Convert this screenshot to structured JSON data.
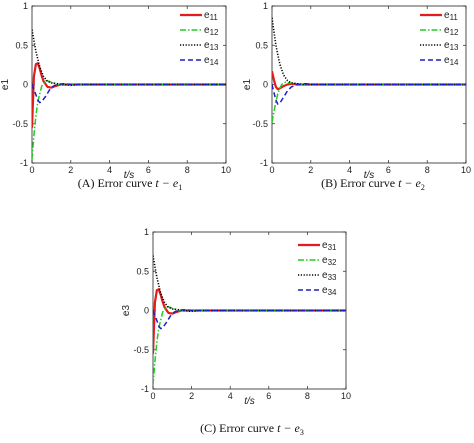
{
  "chart_data": [
    {
      "type": "line",
      "caption": "(A) Error curve",
      "caption_math": {
        "symbol": "t − e",
        "sub": "1"
      },
      "xlabel": "t/s",
      "ylabel": "e1",
      "xlim": [
        0,
        10
      ],
      "ylim": [
        -1,
        1
      ],
      "xticks": [
        "0",
        "2",
        "4",
        "6",
        "8",
        "10"
      ],
      "yticks": [
        "-1",
        "-0.5",
        "0",
        "0.5",
        "1"
      ],
      "legend_position": "top-right",
      "grid": false,
      "series": [
        {
          "name": "e11",
          "base": "e",
          "sub": "11",
          "color": "#e41a1c",
          "dash": "",
          "width": 2.2,
          "x": [
            0,
            0.1,
            0.2,
            0.3,
            0.4,
            0.5,
            0.6,
            0.8,
            1.0,
            1.2,
            1.5,
            2.0,
            3.0,
            10
          ],
          "y": [
            -0.55,
            0.1,
            0.26,
            0.27,
            0.2,
            0.11,
            0.04,
            -0.03,
            -0.04,
            -0.02,
            0.0,
            0.0,
            0.0,
            0.0
          ]
        },
        {
          "name": "e12",
          "base": "e",
          "sub": "12",
          "color": "#22cc22",
          "dash": "6,2,1.5,2",
          "width": 1.5,
          "x": [
            0,
            0.1,
            0.2,
            0.3,
            0.5,
            0.7,
            0.9,
            1.1,
            1.4,
            1.8,
            2.5,
            10
          ],
          "y": [
            -0.95,
            -0.65,
            -0.4,
            -0.22,
            -0.02,
            0.05,
            0.04,
            0.02,
            0.0,
            0.0,
            0.0,
            0.0
          ]
        },
        {
          "name": "e13",
          "base": "e",
          "sub": "13",
          "color": "#000000",
          "dash": "1.2,1.6",
          "width": 1.6,
          "x": [
            0,
            0.2,
            0.4,
            0.6,
            0.8,
            1.0,
            1.3,
            1.6,
            2.0,
            2.5,
            3.0,
            10
          ],
          "y": [
            0.7,
            0.42,
            0.22,
            0.1,
            0.04,
            0.02,
            0.01,
            0.0,
            -0.01,
            0.0,
            0.0,
            0.0
          ]
        },
        {
          "name": "e14",
          "base": "e",
          "sub": "14",
          "color": "#1f1fbf",
          "dash": "5,3",
          "width": 1.5,
          "x": [
            0,
            0.2,
            0.3,
            0.4,
            0.5,
            0.7,
            0.9,
            1.1,
            1.3,
            1.6,
            2.0,
            3.0,
            10
          ],
          "y": [
            0.0,
            -0.13,
            -0.2,
            -0.23,
            -0.22,
            -0.15,
            -0.07,
            -0.02,
            0.0,
            0.01,
            0.0,
            0.0,
            0.0
          ]
        }
      ]
    },
    {
      "type": "line",
      "caption": "(B) Error curve",
      "caption_math": {
        "symbol": "t − e",
        "sub": "2"
      },
      "xlabel": "t/s",
      "ylabel": "e1",
      "xlim": [
        0,
        10
      ],
      "ylim": [
        -1,
        1
      ],
      "xticks": [
        "0",
        "2",
        "4",
        "6",
        "8",
        "10"
      ],
      "yticks": [
        "-1",
        "-0.5",
        "0",
        "0.5",
        "1"
      ],
      "legend_position": "top-right",
      "grid": false,
      "series": [
        {
          "name": "e11",
          "base": "e",
          "sub": "11",
          "color": "#e41a1c",
          "dash": "",
          "width": 2.2,
          "x": [
            0,
            0.1,
            0.2,
            0.3,
            0.4,
            0.6,
            0.8,
            1.0,
            1.3,
            2.0,
            10
          ],
          "y": [
            0.17,
            0.06,
            -0.03,
            -0.06,
            -0.05,
            -0.02,
            0.0,
            0.01,
            0.0,
            0.0,
            0.0
          ]
        },
        {
          "name": "e12",
          "base": "e",
          "sub": "12",
          "color": "#22cc22",
          "dash": "6,2,1.5,2",
          "width": 1.5,
          "x": [
            0,
            0.1,
            0.2,
            0.3,
            0.4,
            0.5,
            0.7,
            0.9,
            1.2,
            1.6,
            2.2,
            10
          ],
          "y": [
            -0.48,
            -0.35,
            -0.22,
            -0.12,
            -0.05,
            0.0,
            0.03,
            0.02,
            0.01,
            0.0,
            0.0,
            0.0
          ]
        },
        {
          "name": "e13",
          "base": "e",
          "sub": "13",
          "color": "#000000",
          "dash": "1.2,1.6",
          "width": 1.6,
          "x": [
            0,
            0.2,
            0.4,
            0.6,
            0.8,
            1.0,
            1.3,
            1.6,
            2.0,
            2.5,
            3.0,
            10
          ],
          "y": [
            0.85,
            0.5,
            0.26,
            0.12,
            0.05,
            0.02,
            0.01,
            0.0,
            0.0,
            0.0,
            0.0,
            0.0
          ]
        },
        {
          "name": "e14",
          "base": "e",
          "sub": "14",
          "color": "#1f1fbf",
          "dash": "5,3",
          "width": 1.5,
          "x": [
            0,
            0.1,
            0.2,
            0.3,
            0.4,
            0.6,
            0.8,
            1.0,
            1.3,
            1.7,
            2.2,
            10
          ],
          "y": [
            0.0,
            -0.1,
            -0.2,
            -0.25,
            -0.24,
            -0.16,
            -0.08,
            -0.03,
            0.0,
            0.01,
            0.0,
            0.0
          ]
        }
      ]
    },
    {
      "type": "line",
      "caption": "(C) Error curve",
      "caption_math": {
        "symbol": "t − e",
        "sub": "3"
      },
      "xlabel": "t/s",
      "ylabel": "e3",
      "xlim": [
        0,
        10
      ],
      "ylim": [
        -1,
        1
      ],
      "xticks": [
        "0",
        "2",
        "4",
        "6",
        "8",
        "10"
      ],
      "yticks": [
        "-1",
        "-0.5",
        "0",
        "0.5",
        "1"
      ],
      "legend_position": "top-right",
      "grid": false,
      "series": [
        {
          "name": "e31",
          "base": "e",
          "sub": "31",
          "color": "#e41a1c",
          "dash": "",
          "width": 2.2,
          "x": [
            0,
            0.1,
            0.2,
            0.3,
            0.4,
            0.5,
            0.6,
            0.8,
            1.0,
            1.2,
            1.5,
            2.0,
            3.0,
            10
          ],
          "y": [
            -0.55,
            0.1,
            0.26,
            0.27,
            0.2,
            0.11,
            0.04,
            -0.03,
            -0.04,
            -0.02,
            0.0,
            0.0,
            0.0,
            0.0
          ]
        },
        {
          "name": "e32",
          "base": "e",
          "sub": "32",
          "color": "#22cc22",
          "dash": "6,2,1.5,2",
          "width": 1.5,
          "x": [
            0,
            0.1,
            0.2,
            0.3,
            0.5,
            0.7,
            0.9,
            1.1,
            1.4,
            1.8,
            2.5,
            10
          ],
          "y": [
            -0.95,
            -0.65,
            -0.4,
            -0.22,
            -0.02,
            0.05,
            0.04,
            0.02,
            0.0,
            0.0,
            0.0,
            0.0
          ]
        },
        {
          "name": "e33",
          "base": "e",
          "sub": "33",
          "color": "#000000",
          "dash": "1.2,1.6",
          "width": 1.6,
          "x": [
            0,
            0.2,
            0.4,
            0.6,
            0.8,
            1.0,
            1.3,
            1.6,
            2.0,
            2.5,
            3.0,
            10
          ],
          "y": [
            0.7,
            0.42,
            0.22,
            0.1,
            0.04,
            0.02,
            0.01,
            0.0,
            -0.01,
            0.0,
            0.0,
            0.0
          ]
        },
        {
          "name": "e34",
          "base": "e",
          "sub": "34",
          "color": "#1f1fbf",
          "dash": "5,3",
          "width": 1.5,
          "x": [
            0,
            0.2,
            0.3,
            0.4,
            0.5,
            0.7,
            0.9,
            1.1,
            1.3,
            1.6,
            2.0,
            3.0,
            10
          ],
          "y": [
            0.0,
            -0.13,
            -0.2,
            -0.23,
            -0.22,
            -0.15,
            -0.07,
            -0.02,
            0.0,
            0.01,
            0.0,
            0.0,
            0.0
          ]
        }
      ]
    }
  ]
}
